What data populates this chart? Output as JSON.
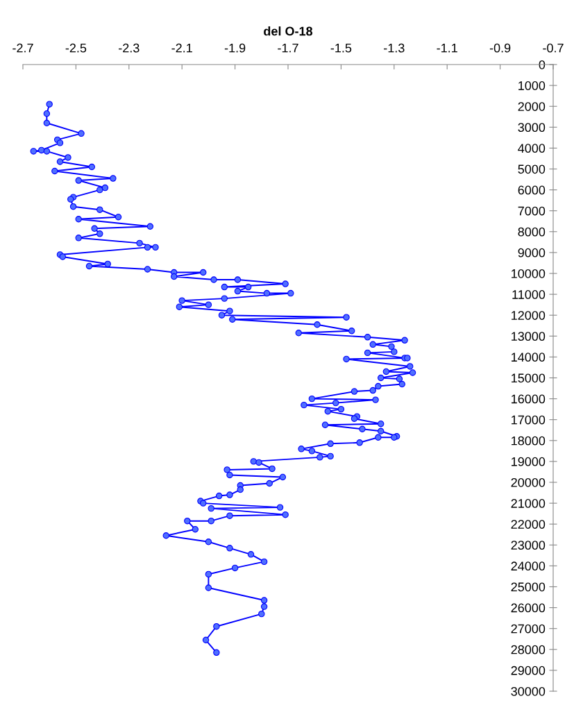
{
  "chart_data": {
    "type": "line",
    "xlabel": "del O-18",
    "xlim": [
      -2.7,
      -0.7
    ],
    "xticks": [
      -2.7,
      -2.5,
      -2.3,
      -2.1,
      -1.9,
      -1.7,
      -1.5,
      -1.3,
      -1.1,
      -0.9,
      -0.7
    ],
    "ylim": [
      30000,
      0
    ],
    "yticks": [
      0,
      1000,
      2000,
      3000,
      4000,
      5000,
      6000,
      7000,
      8000,
      9000,
      10000,
      11000,
      12000,
      13000,
      14000,
      15000,
      16000,
      17000,
      18000,
      19000,
      20000,
      21000,
      22000,
      23000,
      24000,
      25000,
      26000,
      27000,
      28000,
      29000,
      30000
    ],
    "grid": false,
    "legend": false,
    "marker": "circle",
    "line_style": "solid",
    "series": [
      {
        "color": "#0000ff",
        "x": [
          -2.6,
          -2.61,
          -2.61,
          -2.48,
          -2.57,
          -2.56,
          -2.63,
          -2.66,
          -2.61,
          -2.53,
          -2.56,
          -2.44,
          -2.58,
          -2.36,
          -2.49,
          -2.39,
          -2.41,
          -2.51,
          -2.52,
          -2.51,
          -2.41,
          -2.34,
          -2.49,
          -2.22,
          -2.43,
          -2.41,
          -2.49,
          -2.26,
          -2.2,
          -2.23,
          -2.56,
          -2.55,
          -2.38,
          -2.45,
          -2.23,
          -2.13,
          -2.02,
          -2.13,
          -1.98,
          -1.89,
          -1.71,
          -1.94,
          -1.85,
          -1.89,
          -1.78,
          -1.69,
          -1.94,
          -2.1,
          -2.0,
          -2.11,
          -1.92,
          -1.95,
          -1.48,
          -1.91,
          -1.59,
          -1.46,
          -1.66,
          -1.4,
          -1.26,
          -1.38,
          -1.31,
          -1.3,
          -1.4,
          -1.26,
          -1.25,
          -1.48,
          -1.24,
          -1.33,
          -1.23,
          -1.35,
          -1.28,
          -1.27,
          -1.36,
          -1.38,
          -1.45,
          -1.61,
          -1.37,
          -1.52,
          -1.64,
          -1.5,
          -1.55,
          -1.44,
          -1.45,
          -1.35,
          -1.56,
          -1.42,
          -1.35,
          -1.29,
          -1.3,
          -1.36,
          -1.43,
          -1.54,
          -1.65,
          -1.61,
          -1.54,
          -1.58,
          -1.83,
          -1.81,
          -1.76,
          -1.93,
          -1.92,
          -1.72,
          -1.77,
          -1.88,
          -1.88,
          -1.92,
          -1.96,
          -2.03,
          -2.02,
          -1.73,
          -1.99,
          -1.71,
          -1.92,
          -1.99,
          -2.08,
          -2.05,
          -2.16,
          -2.0,
          -1.92,
          -1.84,
          -1.79,
          -1.9,
          -2.0,
          -2.0,
          -1.79,
          -1.79,
          -1.8,
          -1.97,
          -2.01,
          -1.97
        ],
        "values": [
          1900,
          2350,
          2800,
          3300,
          3600,
          3750,
          4100,
          4150,
          4150,
          4450,
          4650,
          4900,
          5100,
          5450,
          5550,
          5900,
          6000,
          6350,
          6450,
          6800,
          6950,
          7300,
          7400,
          7750,
          7850,
          8100,
          8300,
          8550,
          8750,
          8750,
          9100,
          9200,
          9550,
          9650,
          9800,
          9950,
          9950,
          10150,
          10300,
          10300,
          10500,
          10650,
          10650,
          10850,
          10950,
          10950,
          11200,
          11300,
          11500,
          11600,
          11800,
          12000,
          12100,
          12200,
          12450,
          12750,
          12850,
          13050,
          13200,
          13400,
          13500,
          13750,
          13800,
          14050,
          14050,
          14100,
          14450,
          14700,
          14750,
          15000,
          15050,
          15300,
          15400,
          15600,
          15650,
          16000,
          16050,
          16200,
          16300,
          16500,
          16600,
          16850,
          16950,
          17200,
          17250,
          17450,
          17550,
          17800,
          17850,
          17850,
          18100,
          18150,
          18400,
          18500,
          18750,
          18800,
          19000,
          19050,
          19350,
          19400,
          19650,
          19750,
          20050,
          20150,
          20350,
          20600,
          20650,
          20900,
          21000,
          21200,
          21250,
          21550,
          21600,
          21850,
          21850,
          22250,
          22550,
          22850,
          23150,
          23450,
          23800,
          24100,
          24400,
          25050,
          25650,
          25950,
          26300,
          26900,
          27550,
          28150
        ]
      }
    ]
  }
}
